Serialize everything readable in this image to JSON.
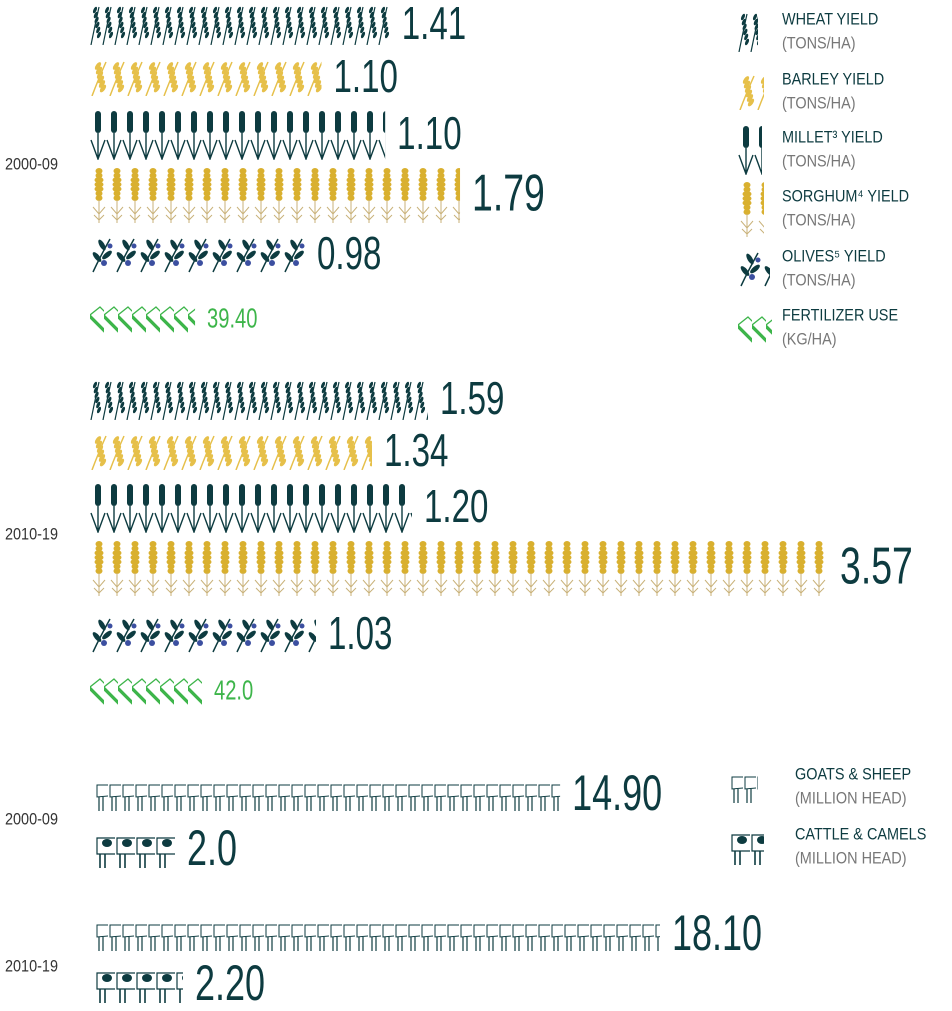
{
  "chart_data": [
    {
      "type": "pictogram",
      "periods": [
        "2000-09",
        "2010-19"
      ],
      "series": [
        {
          "name": "WHEAT YIELD",
          "unit": "(TONS/HA)",
          "color": "#0d3b40",
          "values": [
            1.41,
            1.59
          ]
        },
        {
          "name": "BARLEY YIELD",
          "unit": "(TONS/HA)",
          "color": "#e6c04a",
          "values": [
            1.1,
            1.34
          ],
          "value_labels": [
            "1.10",
            "1.34"
          ]
        },
        {
          "name": "MILLET³ YIELD",
          "unit": "(TONS/HA)",
          "color": "#0d3b40",
          "values": [
            1.1,
            1.2
          ],
          "value_labels": [
            "1.10",
            "1.20"
          ]
        },
        {
          "name": "SORGHUM⁴ YIELD",
          "unit": "(TONS/HA)",
          "color": "#d9b02f",
          "values": [
            1.79,
            3.57
          ]
        },
        {
          "name": "OLIVES⁵ YIELD",
          "unit": "(TONS/HA)",
          "color": "#0d3b40",
          "values": [
            0.98,
            1.03
          ]
        },
        {
          "name": "FERTILIZER USE",
          "unit": "(KG/HA)",
          "color": "#3db54a",
          "values": [
            39.4,
            42
          ],
          "value_labels": [
            "39.40",
            "42.0"
          ]
        }
      ]
    },
    {
      "type": "pictogram",
      "periods": [
        "2000-09",
        "2010-19"
      ],
      "series": [
        {
          "name": "GOATS & SHEEP",
          "unit": "(MILLION HEAD)",
          "color": "#0d3b40",
          "values": [
            14.9,
            18.1
          ],
          "value_labels": [
            "14.90",
            "18.10"
          ]
        },
        {
          "name": "CATTLE & CAMELS",
          "unit": "(MILLION HEAD)",
          "color": "#0d3b40",
          "values": [
            2,
            2.2
          ],
          "value_labels": [
            "2.0",
            "2.20"
          ]
        }
      ]
    }
  ]
}
